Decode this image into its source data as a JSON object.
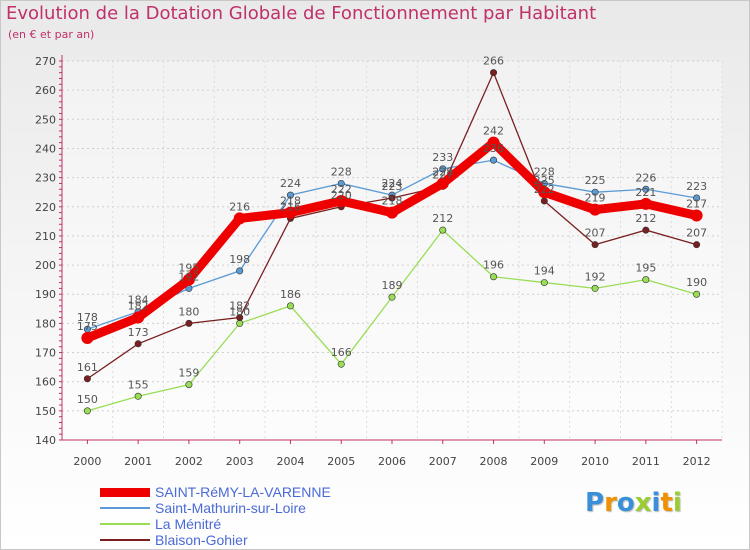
{
  "title": "Evolution de la Dotation Globale de Fonctionnement par Habitant",
  "subtitle": "(en € et par an)",
  "logo_text": "Proxiti",
  "colors": {
    "title": "#c0306a",
    "axis": "#c0306a",
    "legend_text": "#4a6ad6",
    "label_text": "#555555"
  },
  "chart_data": {
    "type": "line",
    "title": "Evolution de la Dotation Globale de Fonctionnement par Habitant",
    "subtitle": "(en € et par an)",
    "xlabel": "",
    "ylabel": "",
    "x": [
      "2000",
      "2001",
      "2002",
      "2003",
      "2004",
      "2005",
      "2006",
      "2007",
      "2008",
      "2009",
      "2010",
      "2011",
      "2012"
    ],
    "ylim": [
      140,
      270
    ],
    "yticks": [
      140,
      150,
      160,
      170,
      180,
      190,
      200,
      210,
      220,
      230,
      240,
      250,
      260,
      270
    ],
    "grid": true,
    "legend_position": "bottom-left",
    "series": [
      {
        "name": "SAINT-RéMY-LA-VARENNE",
        "color": "#ee0000",
        "values": [
          175,
          182,
          195,
          216,
          218,
          222,
          218,
          228,
          242,
          225,
          219,
          221,
          217
        ]
      },
      {
        "name": "Saint-Mathurin-sur-Loire",
        "color": "#5b9bd5",
        "values": [
          178,
          184,
          192,
          198,
          224,
          228,
          224,
          233,
          236,
          228,
          225,
          226,
          223
        ]
      },
      {
        "name": "La Ménitré",
        "color": "#99dd55",
        "values": [
          150,
          155,
          159,
          180,
          186,
          166,
          189,
          212,
          196,
          194,
          192,
          195,
          190
        ]
      },
      {
        "name": "Blaison-Gohier",
        "color": "#7a1f1f",
        "values": [
          161,
          173,
          180,
          182,
          216,
          220,
          223,
          227,
          266,
          222,
          207,
          212,
          207
        ]
      }
    ]
  }
}
